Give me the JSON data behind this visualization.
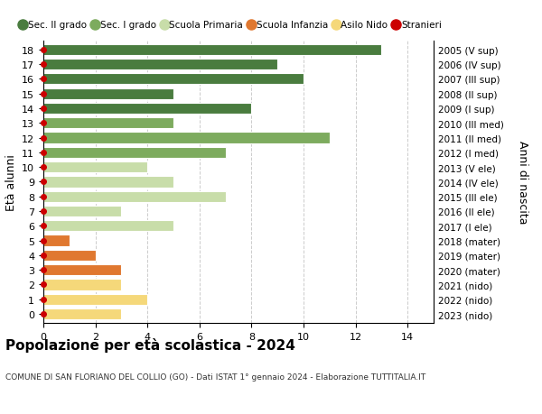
{
  "ages": [
    18,
    17,
    16,
    15,
    14,
    13,
    12,
    11,
    10,
    9,
    8,
    7,
    6,
    5,
    4,
    3,
    2,
    1,
    0
  ],
  "years": [
    "2005 (V sup)",
    "2006 (IV sup)",
    "2007 (III sup)",
    "2008 (II sup)",
    "2009 (I sup)",
    "2010 (III med)",
    "2011 (II med)",
    "2012 (I med)",
    "2013 (V ele)",
    "2014 (IV ele)",
    "2015 (III ele)",
    "2016 (II ele)",
    "2017 (I ele)",
    "2018 (mater)",
    "2019 (mater)",
    "2020 (mater)",
    "2021 (nido)",
    "2022 (nido)",
    "2023 (nido)"
  ],
  "values": [
    13,
    9,
    10,
    5,
    8,
    5,
    11,
    7,
    4,
    5,
    7,
    3,
    5,
    1,
    2,
    3,
    3,
    4,
    3
  ],
  "categories": {
    "Sec. II grado": {
      "ages": [
        18,
        17,
        16,
        15,
        14
      ],
      "color": "#4a7c3f"
    },
    "Sec. I grado": {
      "ages": [
        13,
        12,
        11
      ],
      "color": "#7dab5e"
    },
    "Scuola Primaria": {
      "ages": [
        10,
        9,
        8,
        7,
        6
      ],
      "color": "#c8dda9"
    },
    "Scuola Infanzia": {
      "ages": [
        5,
        4,
        3
      ],
      "color": "#e07830"
    },
    "Asilo Nido": {
      "ages": [
        2,
        1,
        0
      ],
      "color": "#f5d87a"
    }
  },
  "stranieri_color": "#cc0000",
  "bar_height": 0.75,
  "xlim": [
    0,
    15
  ],
  "xticks": [
    0,
    2,
    4,
    6,
    8,
    10,
    12,
    14
  ],
  "ylabel_left": "Età alunni",
  "ylabel_right": "Anni di nascita",
  "title": "Popolazione per età scolastica - 2024",
  "subtitle": "COMUNE DI SAN FLORIANO DEL COLLIO (GO) - Dati ISTAT 1° gennaio 2024 - Elaborazione TUTTITALIA.IT",
  "legend_items": [
    "Sec. II grado",
    "Sec. I grado",
    "Scuola Primaria",
    "Scuola Infanzia",
    "Asilo Nido",
    "Stranieri"
  ],
  "legend_colors": [
    "#4a7c3f",
    "#7dab5e",
    "#c8dda9",
    "#e07830",
    "#f5d87a",
    "#cc0000"
  ],
  "bg_color": "#ffffff",
  "grid_color": "#cccccc"
}
